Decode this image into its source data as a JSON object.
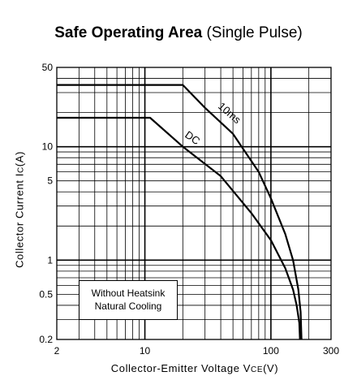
{
  "chart_data": {
    "type": "line",
    "title": "Safe Operating Area",
    "subtitle": "(Single Pulse)",
    "xlabel": {
      "main": "Collector-Emitter Voltage V",
      "sub": "CE",
      "unit": "(V)"
    },
    "ylabel": {
      "main": "Collector Current I",
      "sub": "C",
      "unit": "(A)"
    },
    "x_scale": "log",
    "y_scale": "log",
    "xlim": [
      2,
      300
    ],
    "ylim": [
      0.2,
      50
    ],
    "grid": true,
    "x_ticks": [
      {
        "value": 2,
        "label": "2"
      },
      {
        "value": 10,
        "label": "10"
      },
      {
        "value": 100,
        "label": "100"
      },
      {
        "value": 300,
        "label": "300"
      }
    ],
    "y_ticks": [
      {
        "value": 0.2,
        "label": "0.2"
      },
      {
        "value": 0.5,
        "label": "0.5"
      },
      {
        "value": 1,
        "label": "1"
      },
      {
        "value": 5,
        "label": "5"
      },
      {
        "value": 10,
        "label": "10"
      },
      {
        "value": 50,
        "label": "50"
      }
    ],
    "series": [
      {
        "name": "10ms",
        "x": [
          2,
          20,
          30,
          50,
          80,
          100,
          130,
          150,
          165,
          172,
          175
        ],
        "y": [
          35,
          35,
          22,
          13,
          6,
          3.5,
          1.7,
          1.0,
          0.55,
          0.35,
          0.2
        ]
      },
      {
        "name": "DC",
        "x": [
          2,
          11,
          20,
          40,
          70,
          100,
          130,
          150,
          160,
          168,
          170
        ],
        "y": [
          18,
          18,
          10,
          5.5,
          2.6,
          1.5,
          0.85,
          0.55,
          0.4,
          0.28,
          0.2
        ]
      }
    ],
    "annotation": [
      "Without Heatsink",
      "Natural Cooling"
    ]
  }
}
